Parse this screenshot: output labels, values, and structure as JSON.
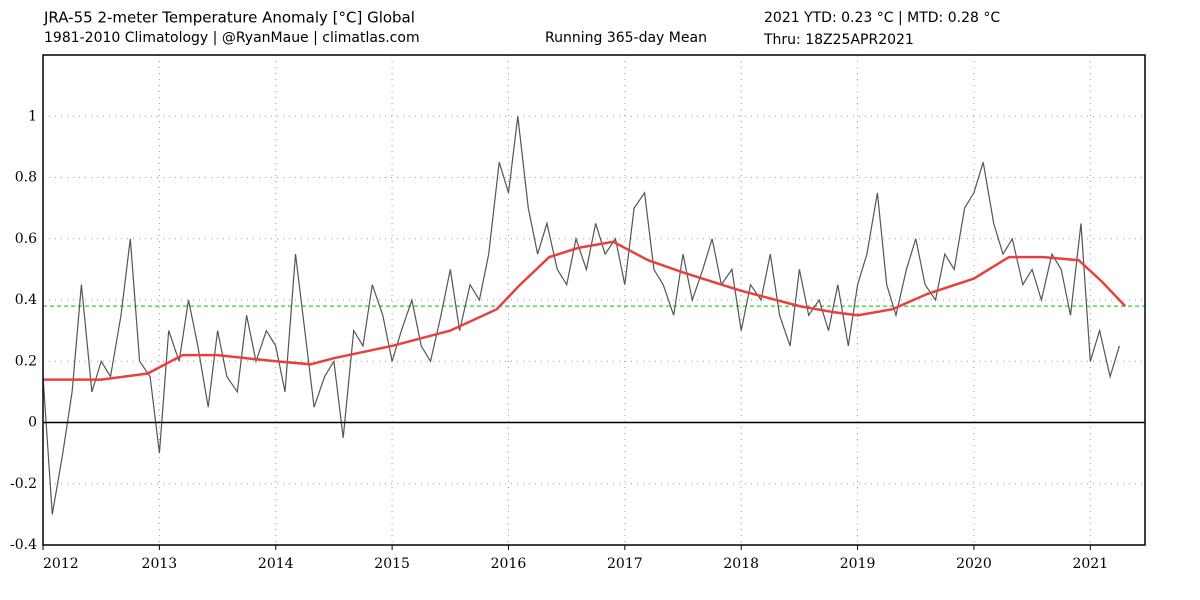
{
  "chart_data": {
    "type": "line",
    "title": "JRA-55 2-meter Temperature Anomaly [°C] Global",
    "subtitle": "1981-2010 Climatology | @RyanMaue | climatlas.com",
    "annotations": [
      "2021 YTD: 0.23 °C | MTD: 0.28 °C",
      "Thru: 18Z25APR2021"
    ],
    "xlim": [
      2012,
      2021.47
    ],
    "xticks": [
      2012,
      2013,
      2014,
      2015,
      2016,
      2017,
      2018,
      2019,
      2020,
      2021
    ],
    "ylim": [
      -0.4,
      1.2
    ],
    "yticks": [
      -0.4,
      -0.2,
      0,
      0.2,
      0.4,
      0.6,
      0.8,
      1
    ],
    "grid": true,
    "zero_line": true,
    "reference_line": {
      "value": 0.38,
      "color": "#33cc33"
    },
    "series": [
      {
        "color": "#555555",
        "x": [
          2012,
          2012.08,
          2012.17,
          2012.25,
          2012.33,
          2012.42,
          2012.5,
          2012.58,
          2012.67,
          2012.75,
          2012.83,
          2012.92,
          2013,
          2013.08,
          2013.17,
          2013.25,
          2013.33,
          2013.42,
          2013.5,
          2013.58,
          2013.67,
          2013.75,
          2013.83,
          2013.92,
          2014,
          2014.08,
          2014.17,
          2014.25,
          2014.33,
          2014.42,
          2014.5,
          2014.58,
          2014.67,
          2014.75,
          2014.83,
          2014.92,
          2015,
          2015.08,
          2015.17,
          2015.25,
          2015.33,
          2015.42,
          2015.5,
          2015.58,
          2015.67,
          2015.75,
          2015.83,
          2015.92,
          2016,
          2016.08,
          2016.17,
          2016.25,
          2016.33,
          2016.42,
          2016.5,
          2016.58,
          2016.67,
          2016.75,
          2016.83,
          2016.92,
          2017,
          2017.08,
          2017.17,
          2017.25,
          2017.33,
          2017.42,
          2017.5,
          2017.58,
          2017.67,
          2017.75,
          2017.83,
          2017.92,
          2018,
          2018.08,
          2018.17,
          2018.25,
          2018.33,
          2018.42,
          2018.5,
          2018.58,
          2018.67,
          2018.75,
          2018.83,
          2018.92,
          2019,
          2019.08,
          2019.17,
          2019.25,
          2019.33,
          2019.42,
          2019.5,
          2019.58,
          2019.67,
          2019.75,
          2019.83,
          2019.92,
          2020,
          2020.08,
          2020.17,
          2020.25,
          2020.33,
          2020.42,
          2020.5,
          2020.58,
          2020.67,
          2020.75,
          2020.83,
          2020.92,
          2021,
          2021.08,
          2021.17,
          2021.25
        ],
        "values": [
          0.15,
          -0.3,
          -0.1,
          0.1,
          0.45,
          0.1,
          0.2,
          0.15,
          0.35,
          0.6,
          0.2,
          0.15,
          -0.1,
          0.3,
          0.2,
          0.4,
          0.25,
          0.05,
          0.3,
          0.15,
          0.1,
          0.35,
          0.2,
          0.3,
          0.25,
          0.1,
          0.55,
          0.3,
          0.05,
          0.15,
          0.2,
          -0.05,
          0.3,
          0.25,
          0.45,
          0.35,
          0.2,
          0.3,
          0.4,
          0.25,
          0.2,
          0.35,
          0.5,
          0.3,
          0.45,
          0.4,
          0.55,
          0.85,
          0.75,
          1.0,
          0.7,
          0.55,
          0.65,
          0.5,
          0.45,
          0.6,
          0.5,
          0.65,
          0.55,
          0.6,
          0.45,
          0.7,
          0.75,
          0.5,
          0.45,
          0.35,
          0.55,
          0.4,
          0.5,
          0.6,
          0.45,
          0.5,
          0.3,
          0.45,
          0.4,
          0.55,
          0.35,
          0.25,
          0.5,
          0.35,
          0.4,
          0.3,
          0.45,
          0.25,
          0.45,
          0.55,
          0.75,
          0.45,
          0.35,
          0.5,
          0.6,
          0.45,
          0.4,
          0.55,
          0.5,
          0.7,
          0.75,
          0.85,
          0.65,
          0.55,
          0.6,
          0.45,
          0.5,
          0.4,
          0.55,
          0.5,
          0.35,
          0.65,
          0.2,
          0.3,
          0.15,
          0.25
        ]
      },
      {
        "name": "Running 365-day Mean",
        "color": "#e84040",
        "x": [
          2012,
          2012.5,
          2012.9,
          2013.2,
          2013.5,
          2014,
          2014.3,
          2014.5,
          2015,
          2015.5,
          2015.9,
          2016.1,
          2016.35,
          2016.6,
          2016.9,
          2017.2,
          2017.5,
          2018,
          2018.5,
          2018.8,
          2019,
          2019.3,
          2019.6,
          2020,
          2020.3,
          2020.6,
          2020.9,
          2021.1,
          2021.3
        ],
        "values": [
          0.14,
          0.14,
          0.16,
          0.22,
          0.22,
          0.2,
          0.19,
          0.21,
          0.25,
          0.3,
          0.37,
          0.45,
          0.54,
          0.57,
          0.59,
          0.53,
          0.49,
          0.43,
          0.38,
          0.36,
          0.35,
          0.37,
          0.42,
          0.47,
          0.54,
          0.54,
          0.53,
          0.46,
          0.38
        ]
      }
    ]
  }
}
